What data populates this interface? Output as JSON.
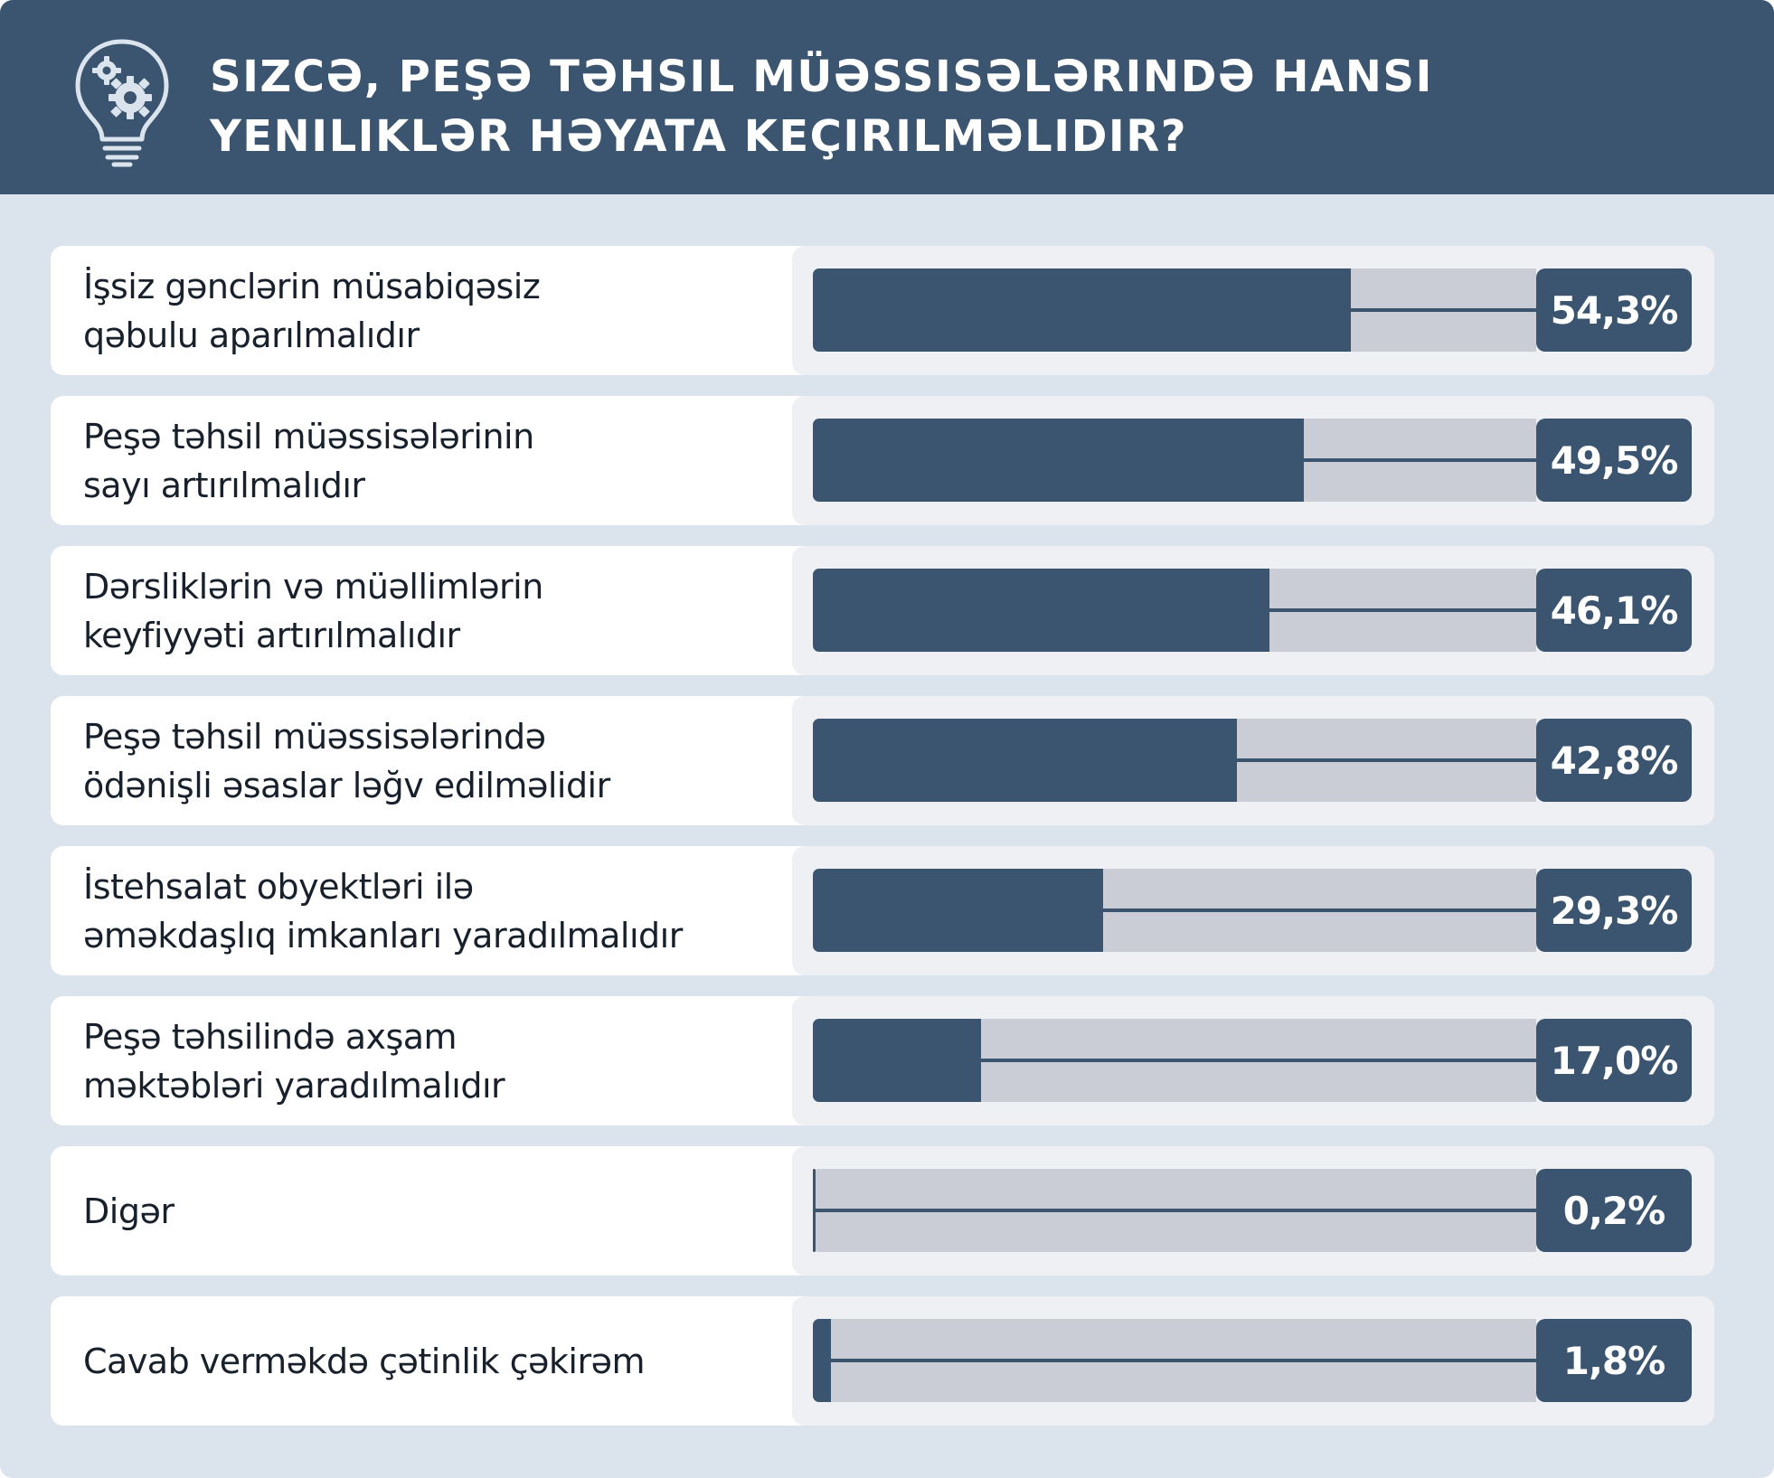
{
  "header": {
    "title_line1": "Sizcə, peşə təhsil müəssisələrində hansı",
    "title_line2": "yeniliklər həyata keçirilməlidir?",
    "icon": "lightbulb-gears-icon"
  },
  "colors": {
    "primary": "#3b5570",
    "background": "#dbe3ec",
    "track": "#cacdd6",
    "row_bar_area": "#eef0f4",
    "row_label_area": "#ffffff"
  },
  "chart_data": {
    "type": "bar",
    "orientation": "horizontal",
    "title": "Sizcə, peşə təhsil müəssisələrində hansı yeniliklər həyata keçirilməlidir?",
    "unit": "%",
    "xlim": [
      0,
      100
    ],
    "grid": false,
    "categories": [
      [
        "İşsiz gənclərin müsabiqəsiz",
        "qəbulu aparılmalıdır"
      ],
      [
        "Peşə təhsil müəssisələrinin",
        "sayı artırılmalıdır"
      ],
      [
        "Dərsliklərin və müəllimlərin",
        "keyfiyyəti artırılmalıdır"
      ],
      [
        "Peşə təhsil müəssisələrində",
        "ödənişli əsaslar ləğv edilməlidir"
      ],
      [
        "İstehsalat obyektləri ilə",
        "əməkdaşlıq imkanları yaradılmalıdır"
      ],
      [
        "Peşə təhsilində axşam",
        "məktəbləri yaradılmalıdır"
      ],
      [
        "Digər"
      ],
      [
        "Cavab verməkdə çətinlik çəkirəm"
      ]
    ],
    "values": [
      54.3,
      49.5,
      46.1,
      42.8,
      29.3,
      17.0,
      0.2,
      1.8
    ],
    "value_labels": [
      "54,3%",
      "49,5%",
      "46,1%",
      "42,8%",
      "29,3%",
      "17,0%",
      "0,2%",
      "1,8%"
    ]
  }
}
